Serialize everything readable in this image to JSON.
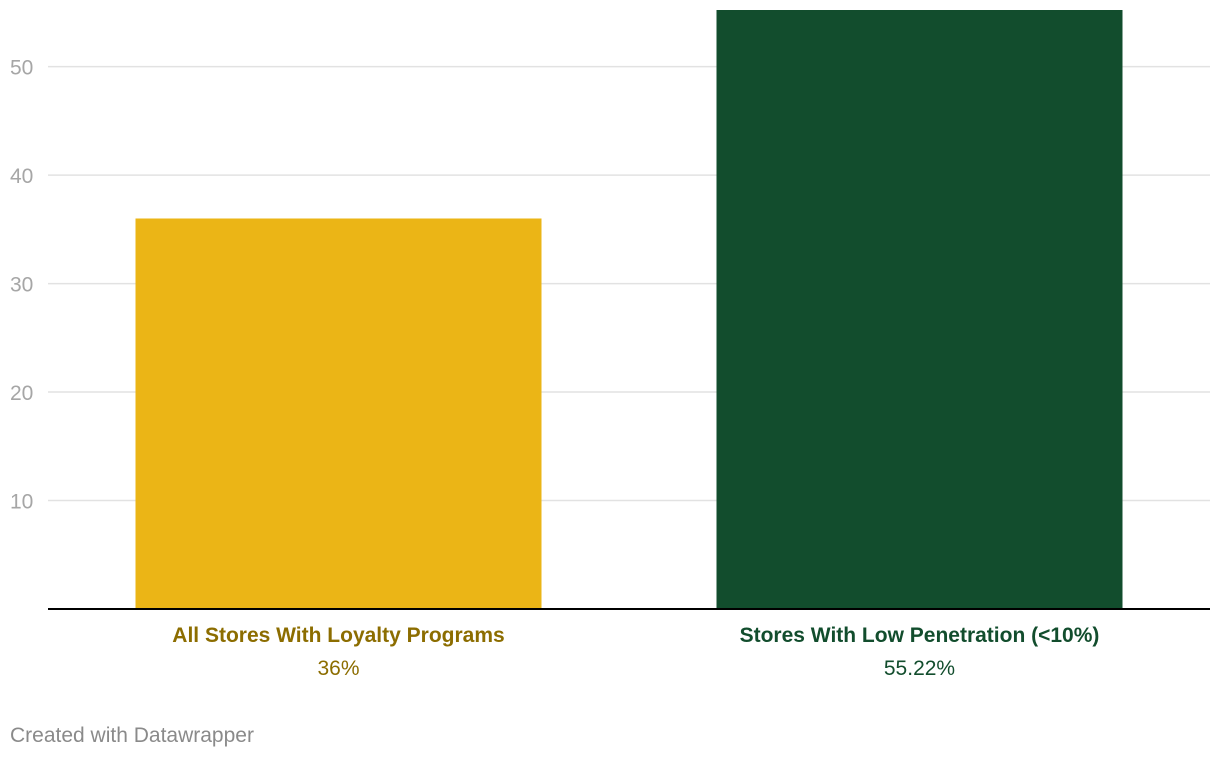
{
  "chart_data": {
    "type": "bar",
    "categories": [
      "All Stores With Loyalty Programs",
      "Stores With Low Penetration (<10%)"
    ],
    "values": [
      36,
      55.22
    ],
    "value_labels": [
      "36%",
      "55.22%"
    ],
    "colors": [
      "#EBB516",
      "#124D2D"
    ],
    "label_colors": [
      "#8C6D00",
      "#124D2D"
    ],
    "title": "",
    "xlabel": "",
    "ylabel": "",
    "ylim": [
      0,
      55.22
    ],
    "yticks": [
      10,
      20,
      30,
      40,
      50
    ],
    "grid": true,
    "axis_color": "#000000",
    "grid_color": "#e2e2e2",
    "tick_color": "#a6a6a6"
  },
  "footer": {
    "credit": "Created with Datawrapper"
  }
}
